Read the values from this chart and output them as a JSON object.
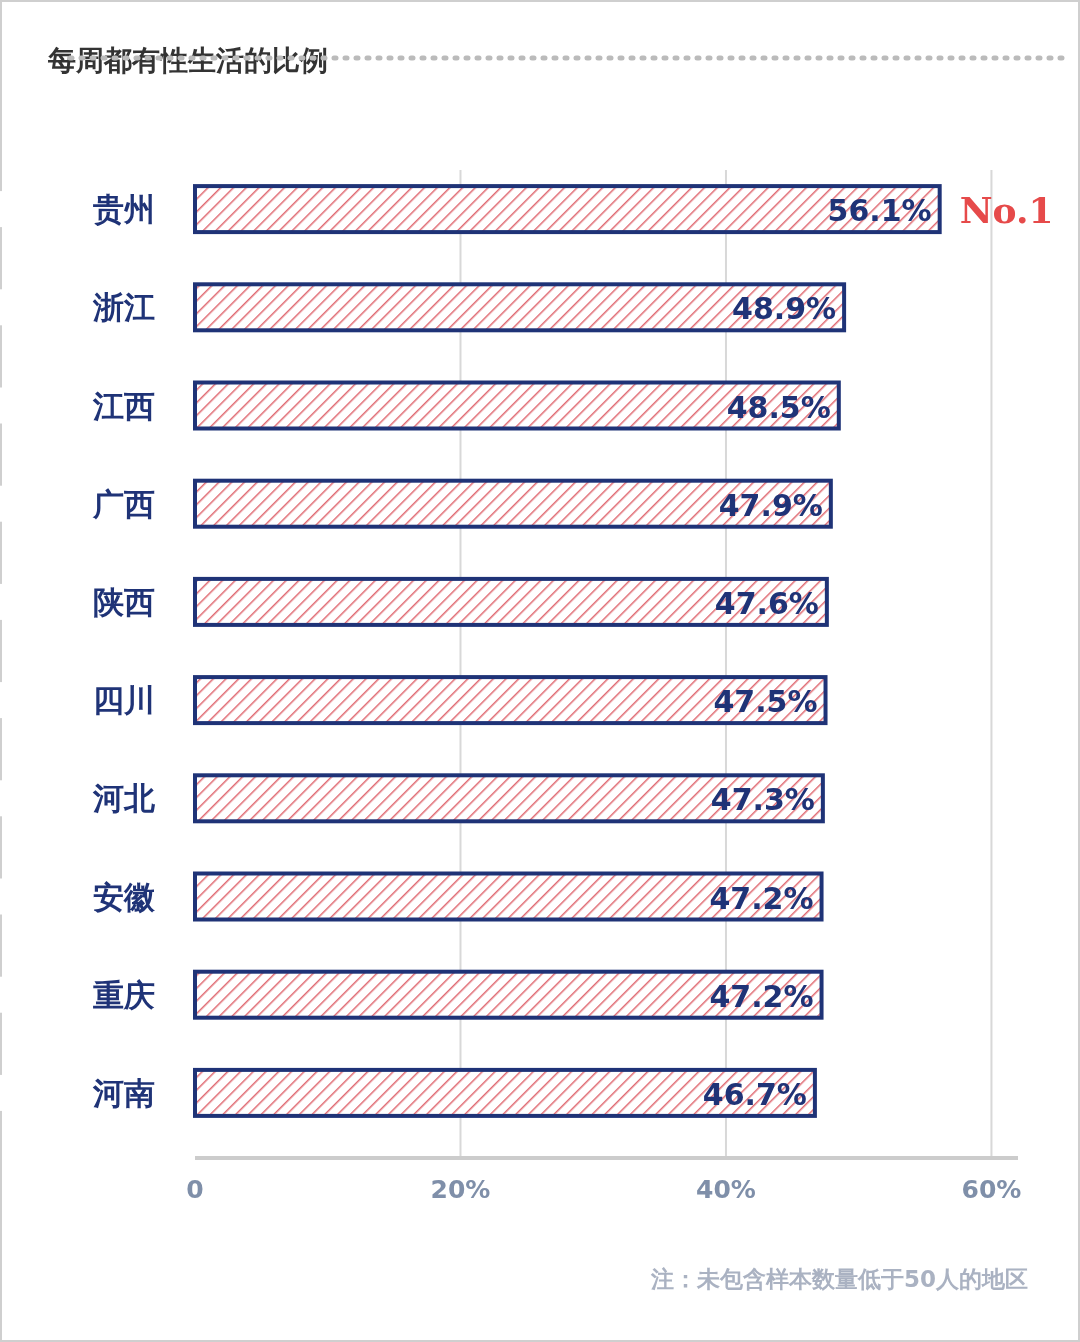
{
  "chart_data": {
    "type": "bar",
    "orientation": "horizontal",
    "title": "每周都有性生活的比例",
    "categories": [
      "贵州",
      "浙江",
      "江西",
      "广西",
      "陕西",
      "四川",
      "河北",
      "安徽",
      "重庆",
      "河南"
    ],
    "values": [
      56.1,
      48.9,
      48.5,
      47.9,
      47.6,
      47.5,
      47.3,
      47.2,
      47.2,
      46.7
    ],
    "value_labels": [
      "56.1%",
      "48.9%",
      "48.5%",
      "47.9%",
      "47.6%",
      "47.5%",
      "47.3%",
      "47.2%",
      "47.2%",
      "46.7%"
    ],
    "color": "#1f3377",
    "xlim": [
      0,
      62
    ],
    "xticks": [
      0,
      {
        "value": 20,
        "label": "20%"
      },
      {
        "value": 40,
        "label": "40%"
      },
      {
        "value": 60,
        "label": "60%"
      }
    ],
    "grid": "x",
    "annotations": [
      {
        "text": "No.1",
        "x": 56.1,
        "y": "贵州"
      },
      "注：未包含样本数量低于50人的地区"
    ]
  }
}
